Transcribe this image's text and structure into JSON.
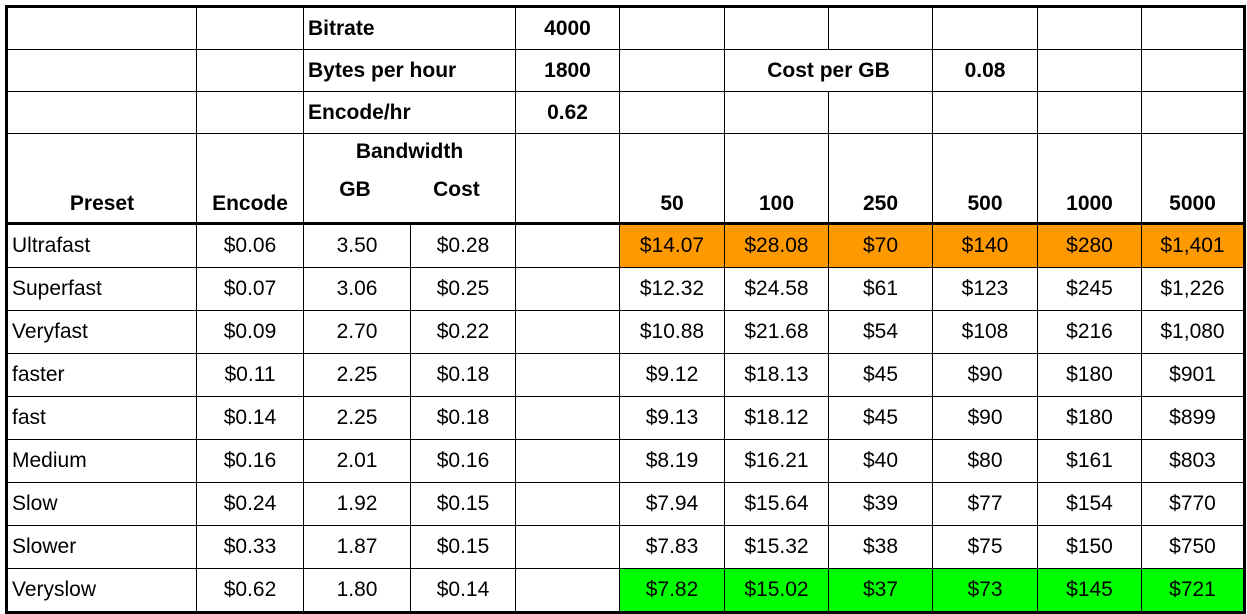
{
  "colors": {
    "worst": "#ff9900",
    "best": "#00ff00"
  },
  "params": {
    "bitrate_label": "Bitrate",
    "bitrate_value": "4000",
    "bytes_label": "Bytes per hour",
    "bytes_value": "1800",
    "encode_label": "Encode/hr",
    "encode_value": "0.62",
    "costgb_label": "Cost per GB",
    "costgb_value": "0.08"
  },
  "headers": {
    "preset": "Preset",
    "encode": "Encode",
    "bandwidth": "Bandwidth",
    "gb": "GB",
    "cost": "Cost",
    "tiers": [
      "50",
      "100",
      "250",
      "500",
      "1000",
      "5000"
    ]
  },
  "rows": [
    {
      "preset": "Ultrafast",
      "encode": "$0.06",
      "gb": "3.50",
      "cost": "$0.28",
      "tiers": [
        "$14.07",
        "$28.08",
        "$70",
        "$140",
        "$280",
        "$1,401"
      ],
      "highlight": "worst"
    },
    {
      "preset": "Superfast",
      "encode": "$0.07",
      "gb": "3.06",
      "cost": "$0.25",
      "tiers": [
        "$12.32",
        "$24.58",
        "$61",
        "$123",
        "$245",
        "$1,226"
      ]
    },
    {
      "preset": "Veryfast",
      "encode": "$0.09",
      "gb": "2.70",
      "cost": "$0.22",
      "tiers": [
        "$10.88",
        "$21.68",
        "$54",
        "$108",
        "$216",
        "$1,080"
      ]
    },
    {
      "preset": "faster",
      "encode": "$0.11",
      "gb": "2.25",
      "cost": "$0.18",
      "tiers": [
        "$9.12",
        "$18.13",
        "$45",
        "$90",
        "$180",
        "$901"
      ]
    },
    {
      "preset": "fast",
      "encode": "$0.14",
      "gb": "2.25",
      "cost": "$0.18",
      "tiers": [
        "$9.13",
        "$18.12",
        "$45",
        "$90",
        "$180",
        "$899"
      ]
    },
    {
      "preset": "Medium",
      "encode": "$0.16",
      "gb": "2.01",
      "cost": "$0.16",
      "tiers": [
        "$8.19",
        "$16.21",
        "$40",
        "$80",
        "$161",
        "$803"
      ]
    },
    {
      "preset": "Slow",
      "encode": "$0.24",
      "gb": "1.92",
      "cost": "$0.15",
      "tiers": [
        "$7.94",
        "$15.64",
        "$39",
        "$77",
        "$154",
        "$770"
      ]
    },
    {
      "preset": "Slower",
      "encode": "$0.33",
      "gb": "1.87",
      "cost": "$0.15",
      "tiers": [
        "$7.83",
        "$15.32",
        "$38",
        "$75",
        "$150",
        "$750"
      ]
    },
    {
      "preset": "Veryslow",
      "encode": "$0.62",
      "gb": "1.80",
      "cost": "$0.14",
      "tiers": [
        "$7.82",
        "$15.02",
        "$37",
        "$73",
        "$145",
        "$721"
      ],
      "highlight": "best"
    }
  ]
}
